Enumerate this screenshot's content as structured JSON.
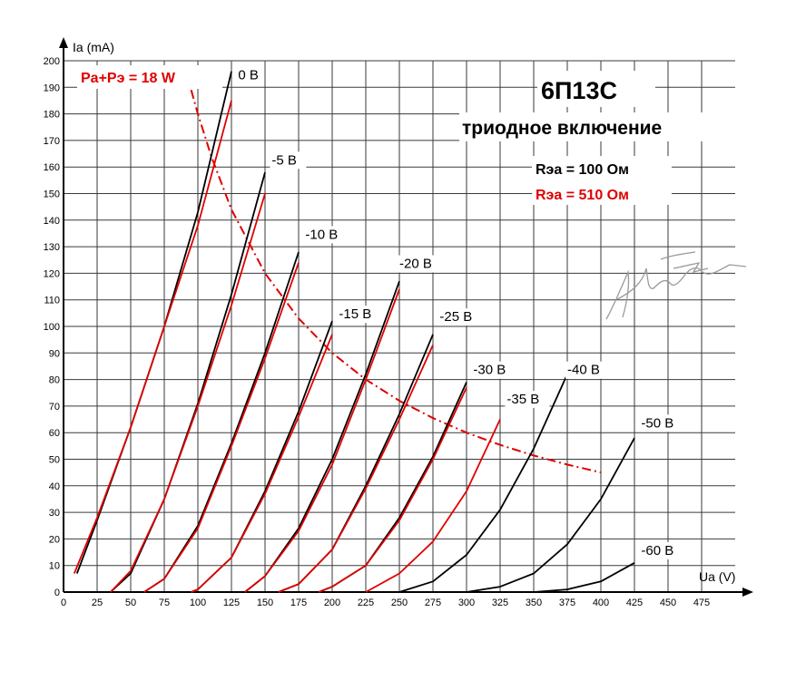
{
  "chart_data": {
    "type": "line",
    "title": "6П13С",
    "subtitle": "триодное включение",
    "xlabel": "Ua (V)",
    "ylabel": "Ia (mA)",
    "xlim": [
      0,
      500
    ],
    "ylim": [
      0,
      200
    ],
    "x_ticks": [
      0,
      25,
      50,
      75,
      100,
      125,
      150,
      175,
      200,
      225,
      250,
      275,
      300,
      325,
      350,
      375,
      400,
      425,
      450,
      475
    ],
    "y_ticks": [
      0,
      10,
      20,
      30,
      40,
      50,
      60,
      70,
      80,
      90,
      100,
      110,
      120,
      130,
      140,
      150,
      160,
      170,
      180,
      190,
      200
    ],
    "grid": true,
    "legend": [
      {
        "text": "Rэа = 100 Ом",
        "color": "#000000"
      },
      {
        "text": "Rэа = 510 Ом",
        "color": "#e00000"
      }
    ],
    "power_curve": {
      "label": "Pa+Pэ = 18 W",
      "color": "#e00000",
      "style": "dash-dot",
      "points": [
        [
          95,
          189
        ],
        [
          100,
          180
        ],
        [
          110,
          164
        ],
        [
          125,
          144
        ],
        [
          150,
          120
        ],
        [
          175,
          103
        ],
        [
          200,
          90
        ],
        [
          225,
          80
        ],
        [
          250,
          72
        ],
        [
          275,
          65.5
        ],
        [
          300,
          60
        ],
        [
          325,
          55.4
        ],
        [
          350,
          51.4
        ],
        [
          375,
          48
        ],
        [
          400,
          45
        ]
      ]
    },
    "series": [
      {
        "name": "0 В",
        "color": "#000000",
        "points": [
          [
            10,
            7
          ],
          [
            25,
            27
          ],
          [
            50,
            62
          ],
          [
            75,
            100
          ],
          [
            100,
            143
          ],
          [
            125,
            196
          ]
        ]
      },
      {
        "name": "0 В",
        "color": "#e00000",
        "points": [
          [
            8,
            7
          ],
          [
            25,
            28
          ],
          [
            50,
            62
          ],
          [
            75,
            100
          ],
          [
            100,
            138
          ],
          [
            125,
            185
          ]
        ]
      },
      {
        "name": "-5 В",
        "color": "#000000",
        "points": [
          [
            35,
            0
          ],
          [
            50,
            7
          ],
          [
            75,
            35
          ],
          [
            100,
            71
          ],
          [
            125,
            112
          ],
          [
            150,
            158
          ]
        ]
      },
      {
        "name": "-5 В",
        "color": "#e00000",
        "points": [
          [
            35,
            0
          ],
          [
            50,
            8
          ],
          [
            75,
            35
          ],
          [
            100,
            70
          ],
          [
            125,
            108
          ],
          [
            150,
            150
          ]
        ]
      },
      {
        "name": "-10 В",
        "color": "#000000",
        "points": [
          [
            60,
            0
          ],
          [
            75,
            5
          ],
          [
            100,
            25
          ],
          [
            125,
            56
          ],
          [
            150,
            90
          ],
          [
            175,
            128
          ]
        ]
      },
      {
        "name": "-10 В",
        "color": "#e00000",
        "points": [
          [
            60,
            0
          ],
          [
            75,
            5
          ],
          [
            100,
            24
          ],
          [
            125,
            55
          ],
          [
            150,
            88
          ],
          [
            175,
            124
          ]
        ]
      },
      {
        "name": "-15 В",
        "color": "#000000",
        "points": [
          [
            95,
            0
          ],
          [
            100,
            1
          ],
          [
            125,
            13
          ],
          [
            150,
            38
          ],
          [
            175,
            68
          ],
          [
            200,
            102
          ]
        ]
      },
      {
        "name": "-15 В",
        "color": "#e00000",
        "points": [
          [
            95,
            0
          ],
          [
            100,
            1
          ],
          [
            125,
            13
          ],
          [
            150,
            37
          ],
          [
            175,
            66
          ],
          [
            200,
            97
          ]
        ]
      },
      {
        "name": "-20 В",
        "color": "#000000",
        "points": [
          [
            135,
            0
          ],
          [
            150,
            6
          ],
          [
            175,
            24
          ],
          [
            200,
            50
          ],
          [
            225,
            82
          ],
          [
            250,
            117
          ]
        ]
      },
      {
        "name": "-20 В",
        "color": "#e00000",
        "points": [
          [
            135,
            0
          ],
          [
            150,
            6
          ],
          [
            175,
            23
          ],
          [
            200,
            48
          ],
          [
            225,
            80
          ],
          [
            250,
            114
          ]
        ]
      },
      {
        "name": "-25 В",
        "color": "#000000",
        "points": [
          [
            160,
            0
          ],
          [
            175,
            3
          ],
          [
            200,
            16
          ],
          [
            225,
            40
          ],
          [
            250,
            67
          ],
          [
            275,
            97
          ]
        ]
      },
      {
        "name": "-25 В",
        "color": "#e00000",
        "points": [
          [
            160,
            0
          ],
          [
            175,
            3
          ],
          [
            200,
            16
          ],
          [
            225,
            39
          ],
          [
            250,
            65
          ],
          [
            275,
            93
          ]
        ]
      },
      {
        "name": "-30 В",
        "color": "#000000",
        "points": [
          [
            190,
            0
          ],
          [
            200,
            2
          ],
          [
            225,
            10
          ],
          [
            250,
            28
          ],
          [
            275,
            51
          ],
          [
            300,
            79
          ]
        ]
      },
      {
        "name": "-30 В",
        "color": "#e00000",
        "points": [
          [
            190,
            0
          ],
          [
            200,
            2
          ],
          [
            225,
            10
          ],
          [
            250,
            27
          ],
          [
            275,
            50
          ],
          [
            300,
            77
          ]
        ]
      },
      {
        "name": "-35 В",
        "color": "#e00000",
        "points": [
          [
            225,
            0
          ],
          [
            250,
            7
          ],
          [
            275,
            19
          ],
          [
            300,
            38
          ],
          [
            325,
            65
          ]
        ]
      },
      {
        "name": "-40 В",
        "color": "#000000",
        "points": [
          [
            250,
            0
          ],
          [
            275,
            4
          ],
          [
            300,
            14
          ],
          [
            325,
            31
          ],
          [
            350,
            54
          ],
          [
            375,
            82
          ]
        ]
      },
      {
        "name": "-50 В",
        "color": "#000000",
        "points": [
          [
            300,
            0
          ],
          [
            325,
            2
          ],
          [
            350,
            7
          ],
          [
            375,
            18
          ],
          [
            400,
            35
          ],
          [
            425,
            58
          ]
        ]
      },
      {
        "name": "-60 В",
        "color": "#000000",
        "points": [
          [
            350,
            0
          ],
          [
            375,
            1
          ],
          [
            400,
            4
          ],
          [
            425,
            11
          ]
        ]
      }
    ],
    "labels": [
      {
        "text": "0 В",
        "x": 130,
        "y": 193
      },
      {
        "text": "-5 В",
        "x": 155,
        "y": 161
      },
      {
        "text": "-10 В",
        "x": 180,
        "y": 133
      },
      {
        "text": "-15 В",
        "x": 205,
        "y": 103
      },
      {
        "text": "-20 В",
        "x": 250,
        "y": 122
      },
      {
        "text": "-25 В",
        "x": 280,
        "y": 102
      },
      {
        "text": "-30 В",
        "x": 305,
        "y": 82
      },
      {
        "text": "-35 В",
        "x": 330,
        "y": 71
      },
      {
        "text": "-40 В",
        "x": 375,
        "y": 82
      },
      {
        "text": "-50 В",
        "x": 430,
        "y": 62
      },
      {
        "text": "-60 В",
        "x": 430,
        "y": 14
      }
    ]
  }
}
